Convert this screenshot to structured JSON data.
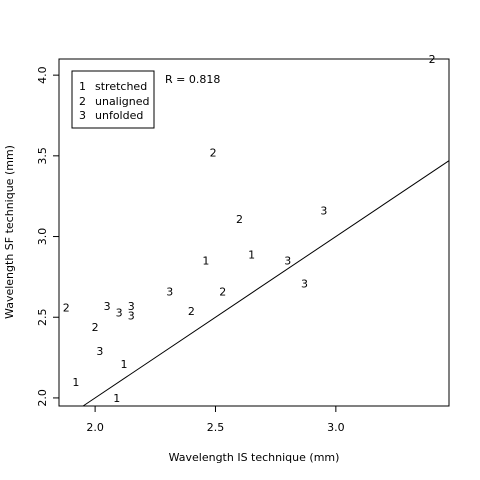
{
  "chart_data": {
    "type": "scatter",
    "title": "",
    "xlabel": "Wavelength IS technique (mm)",
    "ylabel": "Wavelength SF technique (mm)",
    "xlim": [
      1.85,
      3.47
    ],
    "ylim": [
      1.95,
      4.1
    ],
    "xticks": [
      "2.0",
      "2.5",
      "3.0"
    ],
    "yticks": [
      "2.0",
      "2.5",
      "3.0",
      "3.5",
      "4.0"
    ],
    "annotation": "R = 0.818",
    "legend_position": "top-left",
    "legend": [
      {
        "code": "1",
        "label": "stretched"
      },
      {
        "code": "2",
        "label": "unaligned"
      },
      {
        "code": "3",
        "label": "unfolded"
      }
    ],
    "points": [
      {
        "x": 1.92,
        "y": 2.1,
        "label": "1"
      },
      {
        "x": 2.09,
        "y": 2.0,
        "label": "1"
      },
      {
        "x": 2.12,
        "y": 2.21,
        "label": "1"
      },
      {
        "x": 2.46,
        "y": 2.85,
        "label": "1"
      },
      {
        "x": 2.65,
        "y": 2.89,
        "label": "1"
      },
      {
        "x": 1.88,
        "y": 2.56,
        "label": "2"
      },
      {
        "x": 2.0,
        "y": 2.44,
        "label": "2"
      },
      {
        "x": 2.4,
        "y": 2.54,
        "label": "2"
      },
      {
        "x": 2.49,
        "y": 3.52,
        "label": "2"
      },
      {
        "x": 2.53,
        "y": 2.66,
        "label": "2"
      },
      {
        "x": 2.6,
        "y": 3.11,
        "label": "2"
      },
      {
        "x": 3.4,
        "y": 4.1,
        "label": "2"
      },
      {
        "x": 2.02,
        "y": 2.29,
        "label": "3"
      },
      {
        "x": 2.05,
        "y": 2.57,
        "label": "3"
      },
      {
        "x": 2.1,
        "y": 2.53,
        "label": "3"
      },
      {
        "x": 2.15,
        "y": 2.51,
        "label": "3"
      },
      {
        "x": 2.15,
        "y": 2.57,
        "label": "3"
      },
      {
        "x": 2.31,
        "y": 2.66,
        "label": "3"
      },
      {
        "x": 2.8,
        "y": 2.85,
        "label": "3"
      },
      {
        "x": 2.87,
        "y": 2.71,
        "label": "3"
      },
      {
        "x": 2.95,
        "y": 3.16,
        "label": "3"
      }
    ],
    "reference_line": {
      "x1": 1.85,
      "y1": 1.85,
      "x2": 3.47,
      "y2": 3.47
    }
  }
}
